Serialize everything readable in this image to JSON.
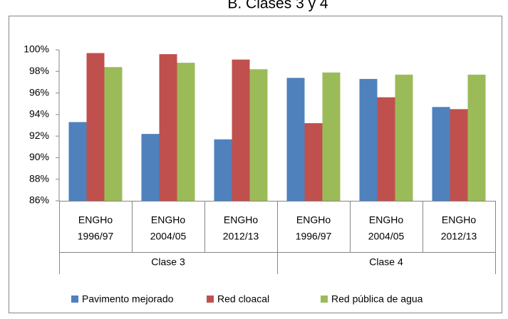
{
  "chart_data": {
    "type": "bar",
    "title": "B. Clases 3 y 4",
    "categories": [
      [
        "ENGHo",
        "1996/97"
      ],
      [
        "ENGHo",
        "2004/05"
      ],
      [
        "ENGHo",
        "2012/13"
      ],
      [
        "ENGHo",
        "1996/97"
      ],
      [
        "ENGHo",
        "2004/05"
      ],
      [
        "ENGHo",
        "2012/13"
      ]
    ],
    "groups": [
      "Clase 3",
      "Clase 4"
    ],
    "series": [
      {
        "name": "Pavimento mejorado",
        "color": "#4f81bd",
        "values": [
          93.3,
          92.2,
          91.7,
          97.4,
          97.3,
          94.7
        ]
      },
      {
        "name": "Red cloacal",
        "color": "#c0504d",
        "values": [
          99.7,
          99.6,
          99.1,
          93.2,
          95.6,
          94.5
        ]
      },
      {
        "name": "Red pública de agua",
        "color": "#9bbb59",
        "values": [
          98.4,
          98.8,
          98.2,
          97.9,
          97.7,
          97.7
        ]
      }
    ],
    "ylim": [
      86,
      100
    ],
    "yticks": [
      {
        "value": 86,
        "label": "86%"
      },
      {
        "value": 88,
        "label": "88%"
      },
      {
        "value": 90,
        "label": "90%"
      },
      {
        "value": 92,
        "label": "92%"
      },
      {
        "value": 94,
        "label": "94%"
      },
      {
        "value": 96,
        "label": "96%"
      },
      {
        "value": 98,
        "label": "98%"
      },
      {
        "value": 100,
        "label": "100%"
      }
    ],
    "grid": false,
    "legend": "bottom"
  }
}
